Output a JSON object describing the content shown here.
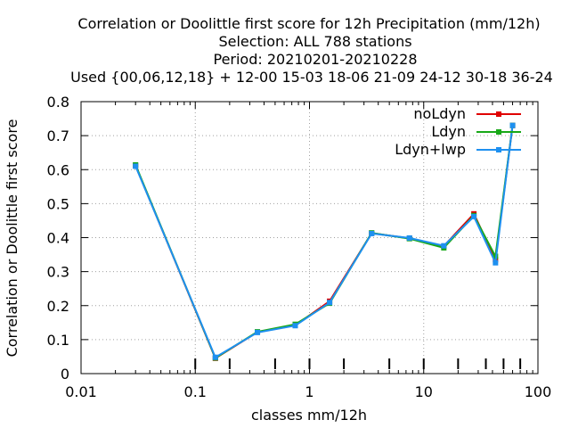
{
  "chart_data": {
    "type": "line",
    "title_lines": [
      "Correlation or Doolittle first score  for 12h Precipitation (mm/12h)",
      "Selection: ALL    788 stations",
      "Period: 20210201-20210228",
      "Used {00,06,12,18} + 12-00 15-03 18-06 21-09 24-12 30-18 36-24"
    ],
    "xlabel": "classes mm/12h",
    "ylabel": "Correlation or Doolittle first score",
    "x_scale": "log",
    "xlim": [
      0.01,
      100
    ],
    "ylim": [
      0,
      0.8
    ],
    "x_tick_labels": [
      "0.01",
      "0.1",
      "1",
      "10",
      "100"
    ],
    "y_tick_labels": [
      "0",
      "0.1",
      "0.2",
      "0.3",
      "0.4",
      "0.5",
      "0.6",
      "0.7",
      "0.8"
    ],
    "grid": true,
    "legend_position": "top-right",
    "class_bounds": [
      0.1,
      0.2,
      0.5,
      1,
      2,
      5,
      10,
      20,
      35,
      50,
      70
    ],
    "x": [
      0.03,
      0.15,
      0.35,
      0.75,
      1.5,
      3.5,
      7.5,
      15,
      27.5,
      42.5,
      60
    ],
    "series": [
      {
        "name": "noLdyn",
        "color": "#e00000",
        "values": [
          0.612,
          0.045,
          0.122,
          0.142,
          0.213,
          0.413,
          0.398,
          0.375,
          0.47,
          0.335,
          0.73
        ]
      },
      {
        "name": "Ldyn",
        "color": "#18a818",
        "values": [
          0.614,
          0.046,
          0.123,
          0.145,
          0.207,
          0.414,
          0.397,
          0.37,
          0.465,
          0.345,
          0.73
        ]
      },
      {
        "name": "Ldyn+lwp",
        "color": "#1e90f0",
        "values": [
          0.61,
          0.048,
          0.121,
          0.141,
          0.209,
          0.412,
          0.399,
          0.376,
          0.462,
          0.326,
          0.73
        ]
      }
    ]
  }
}
